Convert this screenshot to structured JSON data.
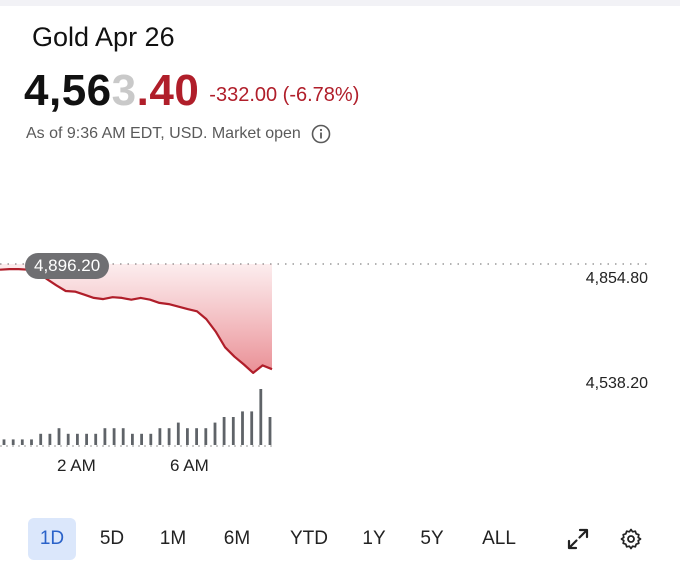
{
  "instrument": {
    "name": "Gold Apr 26",
    "price_main": "4,56",
    "price_ghost": "3",
    "price_tail": ".40",
    "change": "-332.00 (-6.78%)",
    "as_of": "As of 9:36 AM EDT, USD. Market open"
  },
  "chart": {
    "prev_close_label": "4,896.20",
    "y_labels": [
      "4,854.80",
      "4,538.20"
    ],
    "x_labels": [
      "2 AM",
      "6 AM"
    ],
    "colors": {
      "line": "#b01e2a",
      "fill": "#d8343f",
      "volume": "#5f6368",
      "dotted": "#9a9a9a"
    }
  },
  "chart_data": {
    "type": "line",
    "title": "",
    "xlabel": "",
    "ylabel": "",
    "ylim": [
      4538.2,
      4896.2
    ],
    "reference_line": 4896.2,
    "x": [
      "12:00",
      "12:20",
      "12:40",
      "1:00",
      "1:20",
      "1:40",
      "2:00",
      "2:20",
      "2:40",
      "3:00",
      "3:20",
      "3:40",
      "4:00",
      "4:20",
      "4:40",
      "5:00",
      "5:20",
      "5:40",
      "6:00",
      "6:20",
      "6:40",
      "7:00",
      "7:20",
      "7:40",
      "8:00",
      "8:20",
      "8:40",
      "9:00",
      "9:20",
      "9:36"
    ],
    "values": [
      4878,
      4880,
      4880,
      4878,
      4872,
      4848,
      4828,
      4810,
      4808,
      4798,
      4788,
      4784,
      4790,
      4788,
      4782,
      4788,
      4782,
      4772,
      4768,
      4760,
      4752,
      4745,
      4720,
      4680,
      4630,
      4600,
      4575,
      4548,
      4572,
      4560
    ],
    "volume": [
      1,
      1,
      1,
      1,
      2,
      2,
      3,
      2,
      2,
      2,
      2,
      3,
      3,
      3,
      2,
      2,
      2,
      3,
      3,
      4,
      3,
      3,
      3,
      4,
      5,
      5,
      6,
      6,
      10,
      5
    ]
  },
  "ranges": {
    "items": [
      "1D",
      "5D",
      "1M",
      "6M",
      "YTD",
      "1Y",
      "5Y",
      "ALL"
    ],
    "active": "1D"
  },
  "icons": {
    "expand": "expand-icon",
    "settings": "gear-icon",
    "info": "info-icon"
  }
}
